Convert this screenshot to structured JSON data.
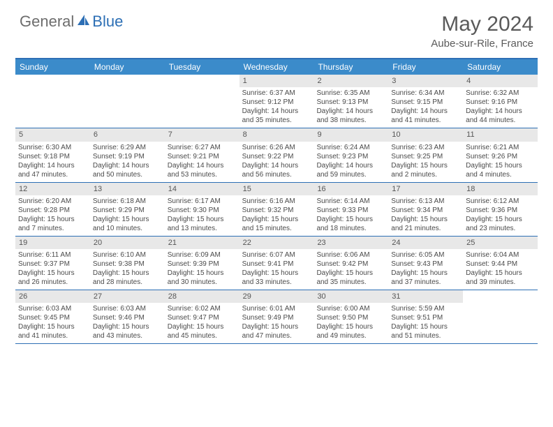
{
  "logo": {
    "word1": "General",
    "word2": "Blue"
  },
  "title": "May 2024",
  "location": "Aube-sur-Rile, France",
  "day_headers": [
    "Sunday",
    "Monday",
    "Tuesday",
    "Wednesday",
    "Thursday",
    "Friday",
    "Saturday"
  ],
  "colors": {
    "header_bar": "#3b8bca",
    "divider": "#2d6fb5",
    "daynum_bg": "#e8e8e8",
    "text": "#4a4a4a",
    "title": "#5a5a5a"
  },
  "weeks": [
    [
      {
        "n": "",
        "sunrise": "",
        "sunset": "",
        "d1": "",
        "d2": ""
      },
      {
        "n": "",
        "sunrise": "",
        "sunset": "",
        "d1": "",
        "d2": ""
      },
      {
        "n": "",
        "sunrise": "",
        "sunset": "",
        "d1": "",
        "d2": ""
      },
      {
        "n": "1",
        "sunrise": "Sunrise: 6:37 AM",
        "sunset": "Sunset: 9:12 PM",
        "d1": "Daylight: 14 hours",
        "d2": "and 35 minutes."
      },
      {
        "n": "2",
        "sunrise": "Sunrise: 6:35 AM",
        "sunset": "Sunset: 9:13 PM",
        "d1": "Daylight: 14 hours",
        "d2": "and 38 minutes."
      },
      {
        "n": "3",
        "sunrise": "Sunrise: 6:34 AM",
        "sunset": "Sunset: 9:15 PM",
        "d1": "Daylight: 14 hours",
        "d2": "and 41 minutes."
      },
      {
        "n": "4",
        "sunrise": "Sunrise: 6:32 AM",
        "sunset": "Sunset: 9:16 PM",
        "d1": "Daylight: 14 hours",
        "d2": "and 44 minutes."
      }
    ],
    [
      {
        "n": "5",
        "sunrise": "Sunrise: 6:30 AM",
        "sunset": "Sunset: 9:18 PM",
        "d1": "Daylight: 14 hours",
        "d2": "and 47 minutes."
      },
      {
        "n": "6",
        "sunrise": "Sunrise: 6:29 AM",
        "sunset": "Sunset: 9:19 PM",
        "d1": "Daylight: 14 hours",
        "d2": "and 50 minutes."
      },
      {
        "n": "7",
        "sunrise": "Sunrise: 6:27 AM",
        "sunset": "Sunset: 9:21 PM",
        "d1": "Daylight: 14 hours",
        "d2": "and 53 minutes."
      },
      {
        "n": "8",
        "sunrise": "Sunrise: 6:26 AM",
        "sunset": "Sunset: 9:22 PM",
        "d1": "Daylight: 14 hours",
        "d2": "and 56 minutes."
      },
      {
        "n": "9",
        "sunrise": "Sunrise: 6:24 AM",
        "sunset": "Sunset: 9:23 PM",
        "d1": "Daylight: 14 hours",
        "d2": "and 59 minutes."
      },
      {
        "n": "10",
        "sunrise": "Sunrise: 6:23 AM",
        "sunset": "Sunset: 9:25 PM",
        "d1": "Daylight: 15 hours",
        "d2": "and 2 minutes."
      },
      {
        "n": "11",
        "sunrise": "Sunrise: 6:21 AM",
        "sunset": "Sunset: 9:26 PM",
        "d1": "Daylight: 15 hours",
        "d2": "and 4 minutes."
      }
    ],
    [
      {
        "n": "12",
        "sunrise": "Sunrise: 6:20 AM",
        "sunset": "Sunset: 9:28 PM",
        "d1": "Daylight: 15 hours",
        "d2": "and 7 minutes."
      },
      {
        "n": "13",
        "sunrise": "Sunrise: 6:18 AM",
        "sunset": "Sunset: 9:29 PM",
        "d1": "Daylight: 15 hours",
        "d2": "and 10 minutes."
      },
      {
        "n": "14",
        "sunrise": "Sunrise: 6:17 AM",
        "sunset": "Sunset: 9:30 PM",
        "d1": "Daylight: 15 hours",
        "d2": "and 13 minutes."
      },
      {
        "n": "15",
        "sunrise": "Sunrise: 6:16 AM",
        "sunset": "Sunset: 9:32 PM",
        "d1": "Daylight: 15 hours",
        "d2": "and 15 minutes."
      },
      {
        "n": "16",
        "sunrise": "Sunrise: 6:14 AM",
        "sunset": "Sunset: 9:33 PM",
        "d1": "Daylight: 15 hours",
        "d2": "and 18 minutes."
      },
      {
        "n": "17",
        "sunrise": "Sunrise: 6:13 AM",
        "sunset": "Sunset: 9:34 PM",
        "d1": "Daylight: 15 hours",
        "d2": "and 21 minutes."
      },
      {
        "n": "18",
        "sunrise": "Sunrise: 6:12 AM",
        "sunset": "Sunset: 9:36 PM",
        "d1": "Daylight: 15 hours",
        "d2": "and 23 minutes."
      }
    ],
    [
      {
        "n": "19",
        "sunrise": "Sunrise: 6:11 AM",
        "sunset": "Sunset: 9:37 PM",
        "d1": "Daylight: 15 hours",
        "d2": "and 26 minutes."
      },
      {
        "n": "20",
        "sunrise": "Sunrise: 6:10 AM",
        "sunset": "Sunset: 9:38 PM",
        "d1": "Daylight: 15 hours",
        "d2": "and 28 minutes."
      },
      {
        "n": "21",
        "sunrise": "Sunrise: 6:09 AM",
        "sunset": "Sunset: 9:39 PM",
        "d1": "Daylight: 15 hours",
        "d2": "and 30 minutes."
      },
      {
        "n": "22",
        "sunrise": "Sunrise: 6:07 AM",
        "sunset": "Sunset: 9:41 PM",
        "d1": "Daylight: 15 hours",
        "d2": "and 33 minutes."
      },
      {
        "n": "23",
        "sunrise": "Sunrise: 6:06 AM",
        "sunset": "Sunset: 9:42 PM",
        "d1": "Daylight: 15 hours",
        "d2": "and 35 minutes."
      },
      {
        "n": "24",
        "sunrise": "Sunrise: 6:05 AM",
        "sunset": "Sunset: 9:43 PM",
        "d1": "Daylight: 15 hours",
        "d2": "and 37 minutes."
      },
      {
        "n": "25",
        "sunrise": "Sunrise: 6:04 AM",
        "sunset": "Sunset: 9:44 PM",
        "d1": "Daylight: 15 hours",
        "d2": "and 39 minutes."
      }
    ],
    [
      {
        "n": "26",
        "sunrise": "Sunrise: 6:03 AM",
        "sunset": "Sunset: 9:45 PM",
        "d1": "Daylight: 15 hours",
        "d2": "and 41 minutes."
      },
      {
        "n": "27",
        "sunrise": "Sunrise: 6:03 AM",
        "sunset": "Sunset: 9:46 PM",
        "d1": "Daylight: 15 hours",
        "d2": "and 43 minutes."
      },
      {
        "n": "28",
        "sunrise": "Sunrise: 6:02 AM",
        "sunset": "Sunset: 9:47 PM",
        "d1": "Daylight: 15 hours",
        "d2": "and 45 minutes."
      },
      {
        "n": "29",
        "sunrise": "Sunrise: 6:01 AM",
        "sunset": "Sunset: 9:49 PM",
        "d1": "Daylight: 15 hours",
        "d2": "and 47 minutes."
      },
      {
        "n": "30",
        "sunrise": "Sunrise: 6:00 AM",
        "sunset": "Sunset: 9:50 PM",
        "d1": "Daylight: 15 hours",
        "d2": "and 49 minutes."
      },
      {
        "n": "31",
        "sunrise": "Sunrise: 5:59 AM",
        "sunset": "Sunset: 9:51 PM",
        "d1": "Daylight: 15 hours",
        "d2": "and 51 minutes."
      },
      {
        "n": "",
        "sunrise": "",
        "sunset": "",
        "d1": "",
        "d2": ""
      }
    ]
  ]
}
